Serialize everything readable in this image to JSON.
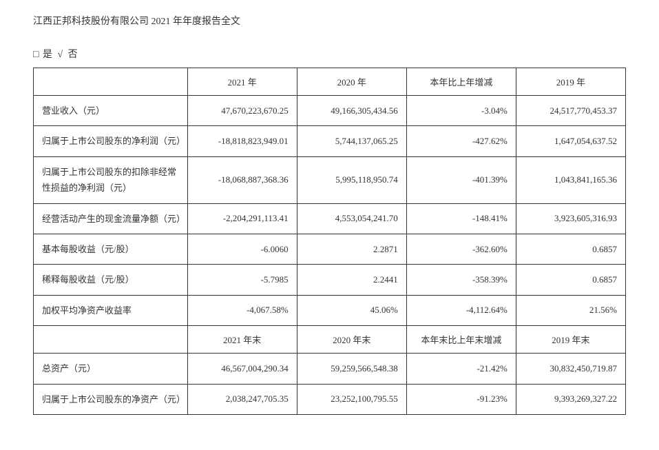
{
  "document": {
    "header": "江西正邦科技股份有限公司 2021 年年度报告全文",
    "checkbox_line": {
      "yes_box": "□",
      "yes_label": "是",
      "check": "√",
      "no_label": "否"
    }
  },
  "table": {
    "colors": {
      "border_color": "#333333",
      "text_color": "#333333",
      "background_color": "#ffffff"
    },
    "fontsize": 13,
    "column_widths": [
      "26%",
      "18.5%",
      "18.5%",
      "18.5%",
      "18.5%"
    ],
    "headers_section1": {
      "blank": "",
      "col2021": "2021 年",
      "col2020": "2020 年",
      "colchange": "本年比上年增减",
      "col2019": "2019 年"
    },
    "rows_section1": [
      {
        "label": "营业收入（元）",
        "v2021": "47,670,223,670.25",
        "v2020": "49,166,305,434.56",
        "change": "-3.04%",
        "v2019": "24,517,770,453.37"
      },
      {
        "label": "归属于上市公司股东的净利润（元）",
        "v2021": "-18,818,823,949.01",
        "v2020": "5,744,137,065.25",
        "change": "-427.62%",
        "v2019": "1,647,054,637.52"
      },
      {
        "label": "归属于上市公司股东的扣除非经常性损益的净利润（元）",
        "v2021": "-18,068,887,368.36",
        "v2020": "5,995,118,950.74",
        "change": "-401.39%",
        "v2019": "1,043,841,165.36"
      },
      {
        "label": "经营活动产生的现金流量净额（元）",
        "v2021": "-2,204,291,113.41",
        "v2020": "4,553,054,241.70",
        "change": "-148.41%",
        "v2019": "3,923,605,316.93"
      },
      {
        "label": "基本每股收益（元/股）",
        "v2021": "-6.0060",
        "v2020": "2.2871",
        "change": "-362.60%",
        "v2019": "0.6857"
      },
      {
        "label": "稀释每股收益（元/股）",
        "v2021": "-5.7985",
        "v2020": "2.2441",
        "change": "-358.39%",
        "v2019": "0.6857"
      },
      {
        "label": "加权平均净资产收益率",
        "v2021": "-4,067.58%",
        "v2020": "45.06%",
        "change": "-4,112.64%",
        "v2019": "21.56%"
      }
    ],
    "headers_section2": {
      "blank": "",
      "col2021e": "2021 年末",
      "col2020e": "2020 年末",
      "colchange_e": "本年末比上年末增减",
      "col2019e": "2019 年末"
    },
    "rows_section2": [
      {
        "label": "总资产（元）",
        "v2021": "46,567,004,290.34",
        "v2020": "59,259,566,548.38",
        "change": "-21.42%",
        "v2019": "30,832,450,719.87"
      },
      {
        "label": "归属于上市公司股东的净资产（元）",
        "v2021": "2,038,247,705.35",
        "v2020": "23,252,100,795.55",
        "change": "-91.23%",
        "v2019": "9,393,269,327.22"
      }
    ]
  }
}
